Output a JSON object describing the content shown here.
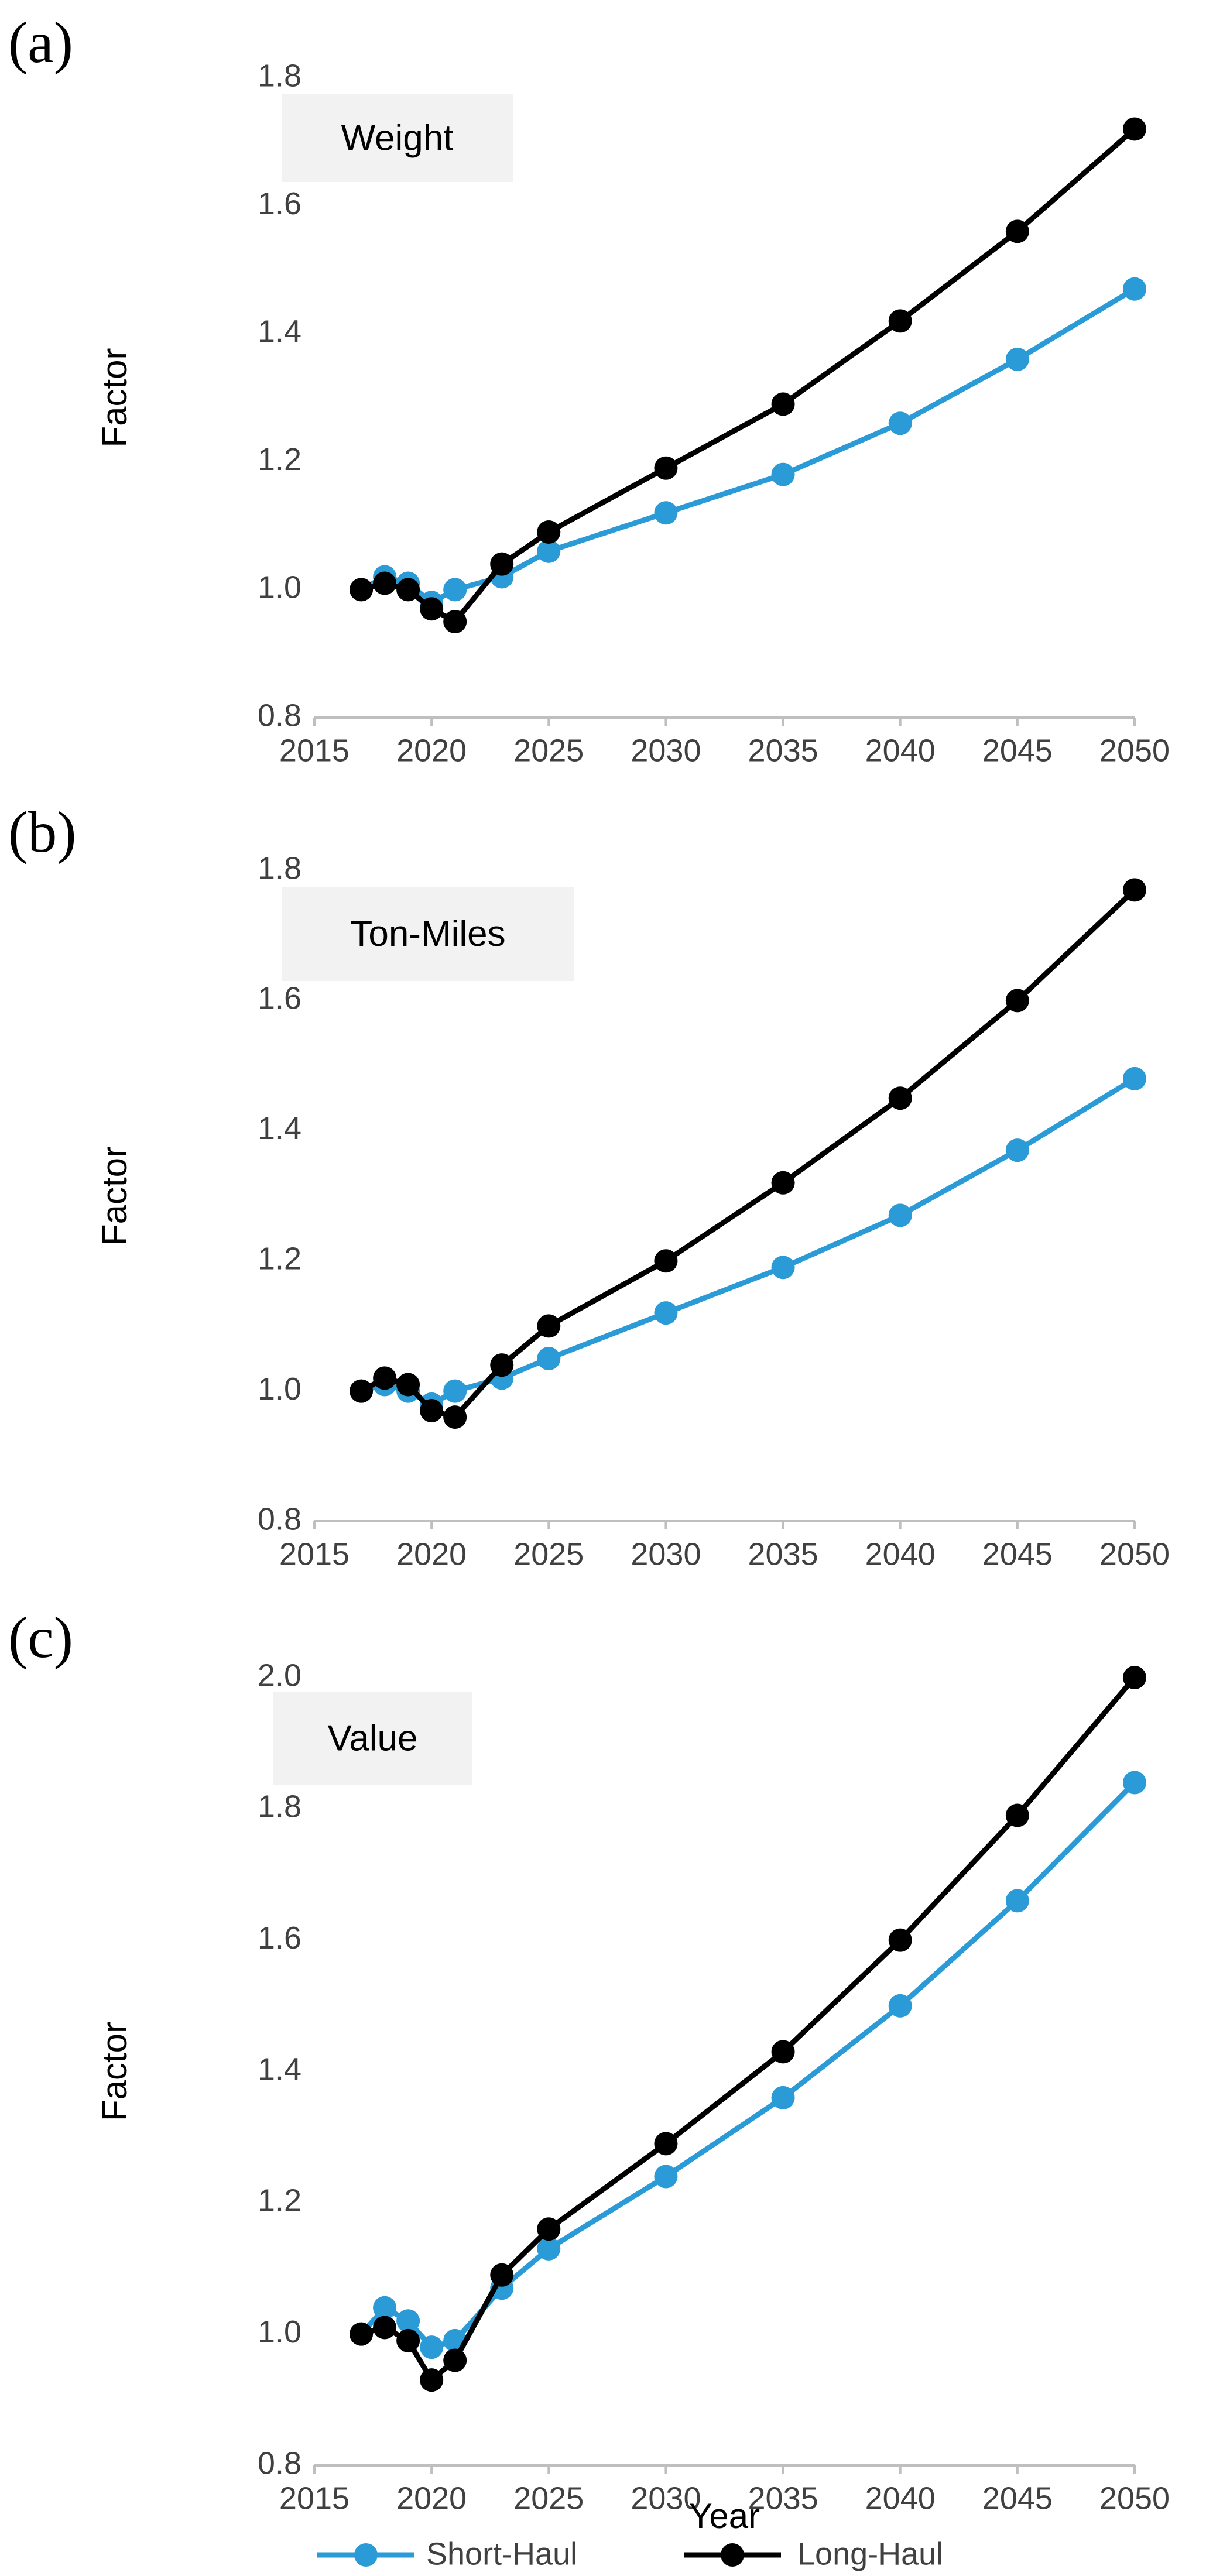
{
  "chart_data": [
    {
      "type": "line",
      "panel": "(a)",
      "annotation": "Weight",
      "ylabel": "Factor",
      "x": [
        2017,
        2018,
        2019,
        2020,
        2021,
        2023,
        2025,
        2030,
        2035,
        2040,
        2045,
        2050
      ],
      "series": [
        {
          "name": "Short-Haul",
          "color": "#2a9bd7",
          "values": [
            1.0,
            1.02,
            1.01,
            0.98,
            1.0,
            1.02,
            1.06,
            1.12,
            1.18,
            1.26,
            1.36,
            1.47
          ]
        },
        {
          "name": "Long-Haul",
          "color": "#000000",
          "values": [
            1.0,
            1.01,
            1.0,
            0.97,
            0.95,
            1.04,
            1.09,
            1.19,
            1.29,
            1.42,
            1.56,
            1.72
          ]
        }
      ],
      "xlim": [
        2015,
        2050
      ],
      "xticks": [
        2015,
        2020,
        2025,
        2030,
        2035,
        2040,
        2045,
        2050
      ],
      "ylim": [
        0.8,
        1.8
      ],
      "yticks": [
        0.8,
        {
          "value": 1,
          "label": "1.0"
        },
        1.2,
        1.4,
        1.6,
        1.8
      ]
    },
    {
      "type": "line",
      "panel": "(b)",
      "annotation": "Ton-Miles",
      "ylabel": "Factor",
      "x": [
        2017,
        2018,
        2019,
        2020,
        2021,
        2023,
        2025,
        2030,
        2035,
        2040,
        2045,
        2050
      ],
      "series": [
        {
          "name": "Short-Haul",
          "color": "#2a9bd7",
          "values": [
            1.0,
            1.01,
            1.0,
            0.98,
            1.0,
            1.02,
            1.05,
            1.12,
            1.19,
            1.27,
            1.37,
            1.48
          ]
        },
        {
          "name": "Long-Haul",
          "color": "#000000",
          "values": [
            1.0,
            1.02,
            1.01,
            0.97,
            0.96,
            1.04,
            1.1,
            1.2,
            1.32,
            1.45,
            1.6,
            1.77
          ]
        }
      ],
      "xlim": [
        2015,
        2050
      ],
      "xticks": [
        2015,
        2020,
        2025,
        2030,
        2035,
        2040,
        2045,
        2050
      ],
      "ylim": [
        0.8,
        1.8
      ],
      "yticks": [
        0.8,
        {
          "value": 1,
          "label": "1.0"
        },
        1.2,
        1.4,
        1.6,
        1.8
      ]
    },
    {
      "type": "line",
      "panel": "(c)",
      "annotation": "Value",
      "ylabel": "Factor",
      "xlabel": "Year",
      "x": [
        2017,
        2018,
        2019,
        2020,
        2021,
        2023,
        2025,
        2030,
        2035,
        2040,
        2045,
        2050
      ],
      "series": [
        {
          "name": "Short-Haul",
          "color": "#2a9bd7",
          "values": [
            1.0,
            1.04,
            1.02,
            0.98,
            0.99,
            1.07,
            1.13,
            1.24,
            1.36,
            1.5,
            1.66,
            1.84
          ]
        },
        {
          "name": "Long-Haul",
          "color": "#000000",
          "values": [
            1.0,
            1.01,
            0.99,
            0.93,
            0.96,
            1.09,
            1.16,
            1.29,
            1.43,
            1.6,
            1.79,
            2.0
          ]
        }
      ],
      "xlim": [
        2015,
        2050
      ],
      "xticks": [
        2015,
        2020,
        2025,
        2030,
        2035,
        2040,
        2045,
        2050
      ],
      "ylim": [
        0.8,
        2.0
      ],
      "yticks": [
        0.8,
        {
          "value": 1,
          "label": "1.0"
        },
        1.2,
        1.4,
        1.6,
        1.8,
        {
          "value": 2,
          "label": "2.0"
        }
      ]
    }
  ]
}
